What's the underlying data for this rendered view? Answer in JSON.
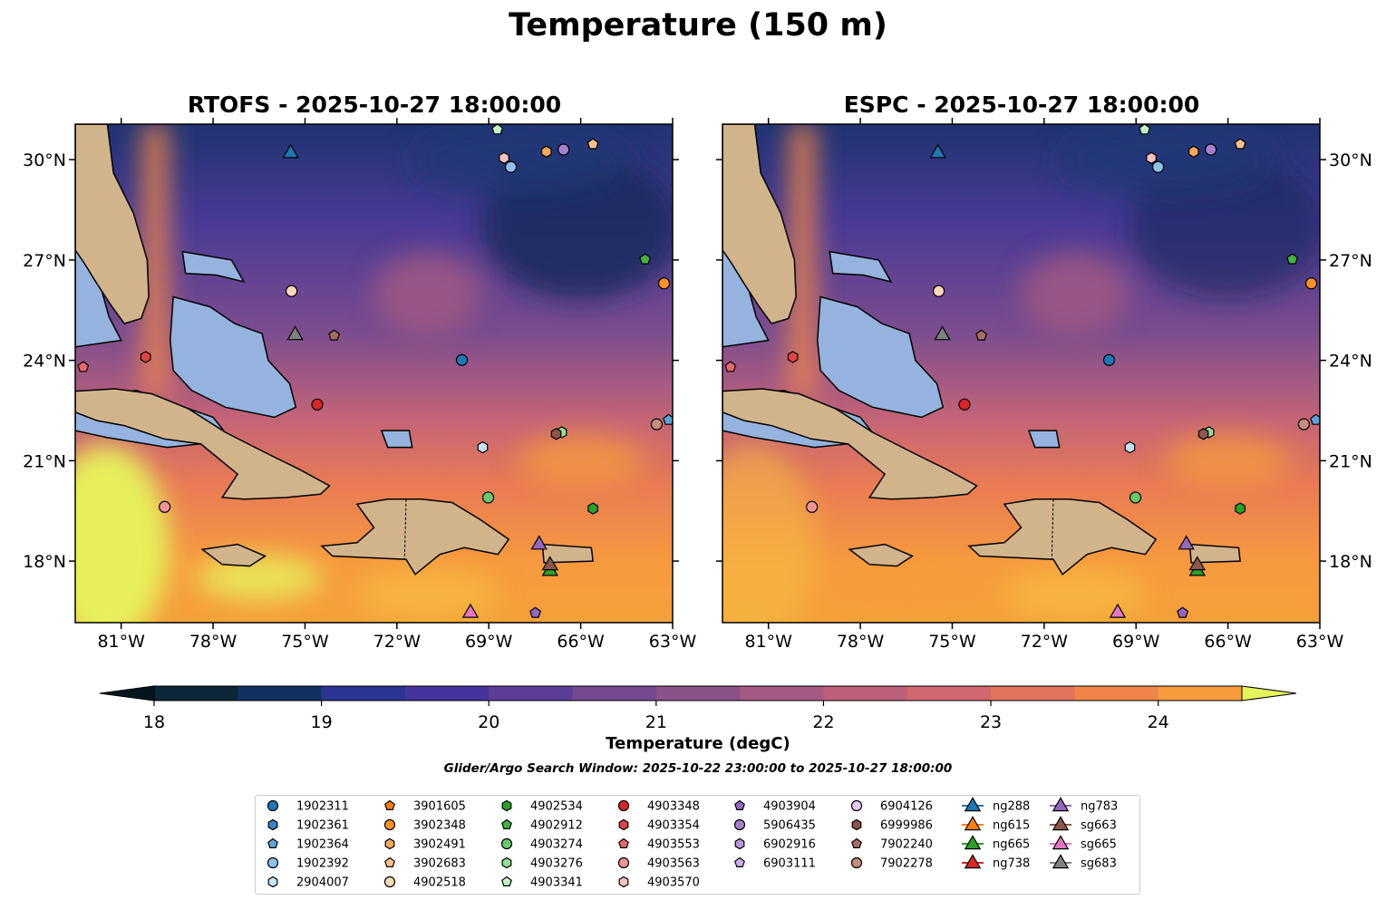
{
  "suptitle": "Temperature (150 m)",
  "panels": [
    {
      "title": "RTOFS - 2025-10-27 18:00:00"
    },
    {
      "title": "ESPC - 2025-10-27 18:00:00"
    }
  ],
  "axes": {
    "lon_ticks": [
      {
        "v": -81,
        "label": "81°W"
      },
      {
        "v": -78,
        "label": "78°W"
      },
      {
        "v": -75,
        "label": "75°W"
      },
      {
        "v": -72,
        "label": "72°W"
      },
      {
        "v": -69,
        "label": "69°W"
      },
      {
        "v": -66,
        "label": "66°W"
      },
      {
        "v": -63,
        "label": "63°W"
      }
    ],
    "lat_ticks": [
      {
        "v": 30,
        "label": "30°N"
      },
      {
        "v": 27,
        "label": "27°N"
      },
      {
        "v": 24,
        "label": "24°N"
      },
      {
        "v": 21,
        "label": "21°N"
      },
      {
        "v": 18,
        "label": "18°N"
      }
    ],
    "lon_range": [
      -82.5,
      -63
    ],
    "lat_range": [
      16.16,
      31.06
    ]
  },
  "colorbar": {
    "label": "Temperature (degC)",
    "levels_min": 18,
    "levels_max": 24.5,
    "step": 0.5,
    "ticks": [
      "18",
      "19",
      "20",
      "21",
      "22",
      "23",
      "24"
    ],
    "colors": [
      "#0b2637",
      "#123163",
      "#2a3592",
      "#45349b",
      "#5c3d97",
      "#744990",
      "#8b5189",
      "#a45a83",
      "#bc607b",
      "#d1676e",
      "#e2735c",
      "#ef854a",
      "#f89b3c",
      "#f6c340"
    ],
    "under": "#041520",
    "over": "#e6f45c"
  },
  "search_window": "Glider/Argo Search Window: 2025-10-22 23:00:00 to 2025-10-27 18:00:00",
  "legend": [
    {
      "id": "1902311",
      "shape": "circle",
      "color": "#1f77b4"
    },
    {
      "id": "1902361",
      "shape": "hexagon",
      "color": "#3a84c4"
    },
    {
      "id": "1902364",
      "shape": "pentagon",
      "color": "#5fa2d5"
    },
    {
      "id": "1902392",
      "shape": "circle",
      "color": "#8fc2ea"
    },
    {
      "id": "2904007",
      "shape": "hexagon",
      "color": "#c6e3fb"
    },
    {
      "id": "3901605",
      "shape": "pentagon",
      "color": "#ff7f0e"
    },
    {
      "id": "3902348",
      "shape": "circle",
      "color": "#ff902a"
    },
    {
      "id": "3902491",
      "shape": "hexagon",
      "color": "#ffa75c"
    },
    {
      "id": "3902683",
      "shape": "pentagon",
      "color": "#ffc08e"
    },
    {
      "id": "4902518",
      "shape": "circle",
      "color": "#ffd9b9"
    },
    {
      "id": "4902534",
      "shape": "hexagon",
      "color": "#2ca02c"
    },
    {
      "id": "4902912",
      "shape": "pentagon",
      "color": "#45b045"
    },
    {
      "id": "4903274",
      "shape": "circle",
      "color": "#6cc66c"
    },
    {
      "id": "4903276",
      "shape": "hexagon",
      "color": "#98dc98"
    },
    {
      "id": "4903341",
      "shape": "pentagon",
      "color": "#c4f4c4"
    },
    {
      "id": "4903348",
      "shape": "circle",
      "color": "#d62728"
    },
    {
      "id": "4903354",
      "shape": "hexagon",
      "color": "#e04448"
    },
    {
      "id": "4903553",
      "shape": "pentagon",
      "color": "#e8686a"
    },
    {
      "id": "4903563",
      "shape": "circle",
      "color": "#f09494"
    },
    {
      "id": "4903570",
      "shape": "hexagon",
      "color": "#fbc0c0"
    },
    {
      "id": "4903904",
      "shape": "pentagon",
      "color": "#9467bd"
    },
    {
      "id": "5906435",
      "shape": "circle",
      "color": "#a77fcd"
    },
    {
      "id": "6902916",
      "shape": "hexagon",
      "color": "#bb97dc"
    },
    {
      "id": "6903111",
      "shape": "pentagon",
      "color": "#cdb0ec"
    },
    {
      "id": "6904126",
      "shape": "circle",
      "color": "#e2cdfa"
    },
    {
      "id": "6999986",
      "shape": "hexagon",
      "color": "#8c564b"
    },
    {
      "id": "7902240",
      "shape": "pentagon",
      "color": "#a86c5e"
    },
    {
      "id": "7902278",
      "shape": "circle",
      "color": "#c58d7f"
    },
    {
      "id": "ng288",
      "shape": "triangle",
      "color": "#1f77b4"
    },
    {
      "id": "ng615",
      "shape": "triangle",
      "color": "#ff7f0e"
    },
    {
      "id": "ng665",
      "shape": "triangle",
      "color": "#2ca02c"
    },
    {
      "id": "ng738",
      "shape": "triangle",
      "color": "#d62728"
    },
    {
      "id": "ng783",
      "shape": "triangle",
      "color": "#9467bd"
    },
    {
      "id": "sg663",
      "shape": "triangle",
      "color": "#8c564b"
    },
    {
      "id": "sg665",
      "shape": "triangle",
      "color": "#e377c2"
    },
    {
      "id": "sg683",
      "shape": "triangle",
      "color": "#7f7f7f"
    }
  ],
  "legend_columns": [
    5,
    5,
    5,
    5,
    4,
    4,
    4,
    4
  ],
  "observations": [
    {
      "id": "ng288",
      "lon": -75.47,
      "lat": 30.24
    },
    {
      "id": "4903341",
      "lon": -68.72,
      "lat": 30.9
    },
    {
      "id": "4903570",
      "lon": -68.5,
      "lat": 30.05
    },
    {
      "id": "1902392",
      "lon": -68.28,
      "lat": 29.78
    },
    {
      "id": "3902491",
      "lon": -67.12,
      "lat": 30.24
    },
    {
      "id": "5906435",
      "lon": -66.56,
      "lat": 30.3
    },
    {
      "id": "3902683",
      "lon": -65.6,
      "lat": 30.46
    },
    {
      "id": "4902912",
      "lon": -63.9,
      "lat": 27.02
    },
    {
      "id": "3902348",
      "lon": -63.28,
      "lat": 26.3
    },
    {
      "id": "4902518",
      "lon": -75.44,
      "lat": 26.07
    },
    {
      "id": "sg683",
      "lon": -75.32,
      "lat": 24.8
    },
    {
      "id": "7902240",
      "lon": -74.05,
      "lat": 24.74
    },
    {
      "id": "4903354",
      "lon": -80.2,
      "lat": 24.1
    },
    {
      "id": "4903553",
      "lon": -82.24,
      "lat": 23.8
    },
    {
      "id": "1902311",
      "lon": -69.88,
      "lat": 24.01
    },
    {
      "id": "4903348",
      "lon": -74.6,
      "lat": 22.68
    },
    {
      "id": "7902278",
      "lon": -63.52,
      "lat": 22.09
    },
    {
      "id": "1902364",
      "lon": -63.13,
      "lat": 22.22
    },
    {
      "id": "4903276",
      "lon": -66.62,
      "lat": 21.85
    },
    {
      "id": "6999986",
      "lon": -66.8,
      "lat": 21.8
    },
    {
      "id": "2904007",
      "lon": -69.2,
      "lat": 21.4
    },
    {
      "id": "4903274",
      "lon": -69.02,
      "lat": 19.9
    },
    {
      "id": "4902534",
      "lon": -65.6,
      "lat": 19.57
    },
    {
      "id": "4903563",
      "lon": -79.58,
      "lat": 19.62
    },
    {
      "id": "ng783",
      "lon": -67.36,
      "lat": 18.54
    },
    {
      "id": "ng665",
      "lon": -67.0,
      "lat": 17.75
    },
    {
      "id": "sg663",
      "lon": -67.0,
      "lat": 17.92
    },
    {
      "id": "sg665",
      "lon": -69.6,
      "lat": 16.5
    },
    {
      "id": "4903904",
      "lon": -67.48,
      "lat": 16.45
    }
  ]
}
